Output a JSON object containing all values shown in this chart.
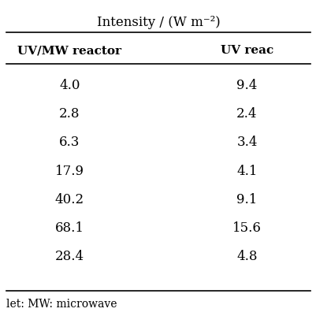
{
  "title": "Intensity / (W m⁻²)",
  "col1_header": "UV/MW reactor",
  "col2_header": "UV reac",
  "col1_values": [
    "4.0",
    "2.8",
    "6.3",
    "17.9",
    "40.2",
    "68.1",
    "28.4"
  ],
  "col2_values": [
    "9.4",
    "2.4",
    "3.4",
    "4.1",
    "9.1",
    "15.6",
    "4.8"
  ],
  "footer": "let: MW: microwave",
  "bg_color": "#ffffff",
  "text_color": "#000000",
  "font_size": 11,
  "header_font_size": 11
}
